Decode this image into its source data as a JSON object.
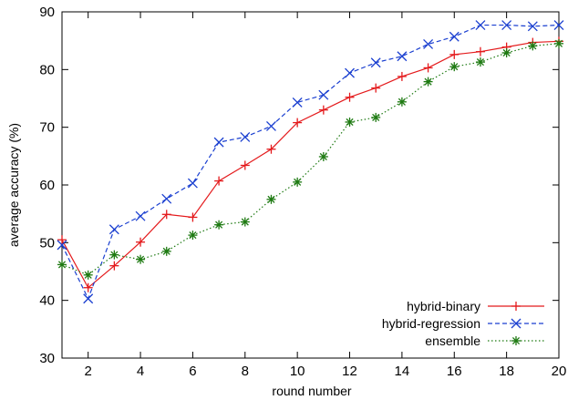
{
  "chart_data": {
    "type": "line",
    "title": "",
    "xlabel": "round number",
    "ylabel": "average accuracy (%)",
    "xlim": [
      1,
      20
    ],
    "ylim": [
      30,
      90
    ],
    "xticks": [
      2,
      4,
      6,
      8,
      10,
      12,
      14,
      16,
      18,
      20
    ],
    "yticks": [
      30,
      40,
      50,
      60,
      70,
      80,
      90
    ],
    "grid": false,
    "legend_position": "bottom-right",
    "x": [
      1,
      2,
      3,
      4,
      5,
      6,
      7,
      8,
      9,
      10,
      11,
      12,
      13,
      14,
      15,
      16,
      17,
      18,
      19,
      20
    ],
    "series": [
      {
        "name": "hybrid-binary",
        "color": "#e41a1c",
        "line_style": "solid",
        "marker": "plus",
        "values": [
          50.5,
          42.2,
          46.0,
          50.1,
          54.9,
          54.4,
          60.7,
          63.4,
          66.2,
          70.8,
          73.0,
          75.2,
          76.8,
          78.8,
          80.3,
          82.6,
          83.1,
          83.9,
          84.7,
          84.9
        ]
      },
      {
        "name": "hybrid-regression",
        "color": "#1a3fd0",
        "line_style": "dashed",
        "marker": "cross",
        "values": [
          49.6,
          40.3,
          52.3,
          54.6,
          57.6,
          60.3,
          67.4,
          68.3,
          70.2,
          74.3,
          75.6,
          79.4,
          81.2,
          82.3,
          84.4,
          85.7,
          87.7,
          87.7,
          87.5,
          87.7
        ]
      },
      {
        "name": "ensemble",
        "color": "#1e7a12",
        "line_style": "dotted",
        "marker": "star",
        "values": [
          46.2,
          44.4,
          47.9,
          47.1,
          48.5,
          51.3,
          53.1,
          53.6,
          57.5,
          60.5,
          64.9,
          70.9,
          71.7,
          74.4,
          77.9,
          80.5,
          81.3,
          82.9,
          84.1,
          84.5
        ]
      }
    ]
  }
}
